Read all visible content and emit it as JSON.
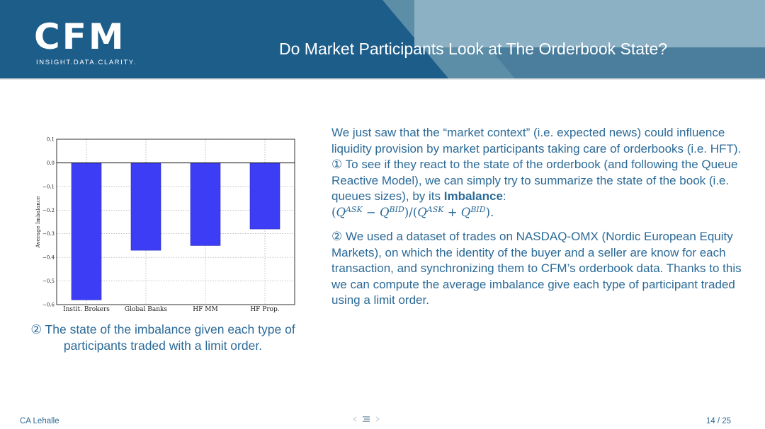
{
  "header": {
    "logo_text": "CFM",
    "logo_tagline": "INSIGHT.DATA.CLARITY.",
    "title": "Do Market Participants Look at The Orderbook State?"
  },
  "figure": {
    "caption": "② The state of the imbalance given each type of participants traded with a limit order."
  },
  "chart_data": {
    "type": "bar",
    "categories": [
      "Instit. Brokers",
      "Global Banks",
      "HF MM",
      "HF Prop."
    ],
    "values": [
      -0.58,
      -0.37,
      -0.35,
      -0.28
    ],
    "ylabel": "Average Imbalance",
    "xlabel": "",
    "ylim": [
      -0.6,
      0.1
    ],
    "yticks": [
      0.1,
      0.0,
      -0.1,
      -0.2,
      -0.3,
      -0.4,
      -0.5,
      -0.6
    ],
    "ytick_labels": [
      "0.1",
      "0.0",
      "−0.1",
      "−0.2",
      "−0.3",
      "−0.4",
      "−0.5",
      "−0.6"
    ],
    "grid": true,
    "bar_color": "#3d3df5"
  },
  "body": {
    "p1_text": "We just saw that the “market context” (i.e. expected news) could influence liquidity provision by market participants taking care of orderbooks (i.e. HFT).",
    "p1_item": "① To see if they react to the state of the orderbook (and following the Queue Reactive Model), we can simply try to summarize the state of the book (i.e. queues sizes), by its",
    "p1_bold": "Imbalance",
    "p1_colon": ":",
    "formula": {
      "open": "(",
      "q1": "Q",
      "ask": "ASK",
      "minus": " − ",
      "q2": "Q",
      "bid": "BID",
      "mid": ")/(",
      "q3": "Q",
      "ask2": "ASK",
      "plus": " + ",
      "q4": "Q",
      "bid2": "BID",
      "close": ")."
    },
    "p2_text": "② We used a dataset of trades on NASDAQ-OMX (Nordic European Equity Markets), on which the identity of the buyer and a seller are know for each transaction, and synchronizing them to CFM’s orderbook data. Thanks to this we can compute the average imbalance give each type of participant traded using a limit order."
  },
  "footer": {
    "author": "CA Lehalle",
    "page": "14 / 25"
  },
  "colors": {
    "header_bg": "#1d5d8a",
    "text_blue": "#2b6a97"
  }
}
